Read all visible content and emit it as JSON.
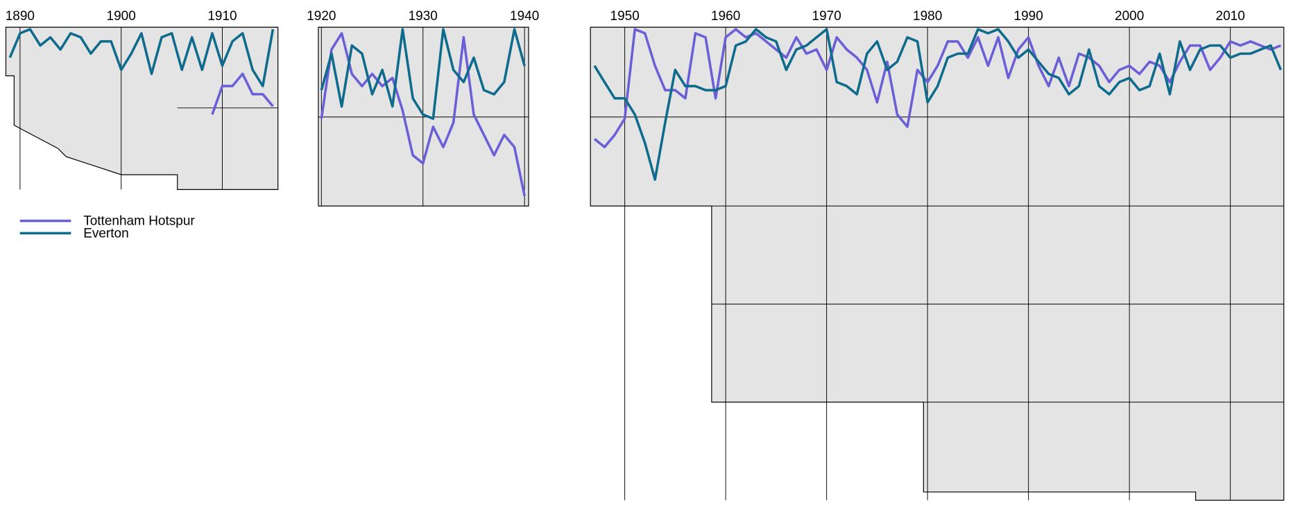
{
  "chart_data": [
    {
      "type": "line",
      "x": [
        1889,
        1890,
        1891,
        1892,
        1893,
        1894,
        1895,
        1896,
        1897,
        1898,
        1899,
        1900,
        1901,
        1902,
        1903,
        1904,
        1905,
        1906,
        1907,
        1908,
        1909,
        1910,
        1911,
        1912,
        1913,
        1914,
        1915
      ],
      "xlim": [
        1888.6,
        1915.5
      ],
      "xticks": [
        1890,
        1900,
        1910
      ],
      "ylim": [
        0.5,
        40.5
      ],
      "grid": true,
      "series": [
        {
          "name": "Tottenham Hotspur",
          "color": "#6b5fd6",
          "values": [
            null,
            null,
            null,
            null,
            null,
            null,
            null,
            null,
            null,
            null,
            null,
            null,
            null,
            null,
            null,
            null,
            null,
            null,
            null,
            null,
            22,
            15,
            15,
            12,
            17,
            17,
            20
          ]
        },
        {
          "name": "Everton",
          "color": "#0f6b8c",
          "values": [
            8,
            2,
            1,
            5,
            3,
            6,
            2,
            3,
            7,
            4,
            4,
            11,
            7,
            2,
            12,
            3,
            2,
            11,
            3,
            11,
            2,
            10,
            4,
            2,
            11,
            15,
            1
          ]
        }
      ]
    },
    {
      "type": "line",
      "x": [
        1920,
        1921,
        1922,
        1923,
        1924,
        1925,
        1926,
        1927,
        1928,
        1929,
        1930,
        1931,
        1932,
        1933,
        1934,
        1935,
        1936,
        1937,
        1938,
        1939,
        1940
      ],
      "xlim": [
        1919.7,
        1940.4
      ],
      "xticks": [
        1920,
        1930,
        1940
      ],
      "ylim": [
        0.5,
        44.5
      ],
      "grid": true,
      "series": [
        {
          "name": "Tottenham Hotspur",
          "color": "#6b5fd6",
          "values": [
            23,
            6,
            2,
            12,
            15,
            12,
            15,
            13,
            21,
            32,
            34,
            25,
            30,
            24,
            3,
            22,
            27,
            32,
            27,
            30,
            42
          ]
        },
        {
          "name": "Everton",
          "color": "#0f6b8c",
          "values": [
            16,
            7,
            20,
            5,
            7,
            17,
            11,
            20,
            1,
            18,
            22,
            23,
            1,
            11,
            14,
            8,
            16,
            17,
            14,
            1,
            10
          ]
        }
      ]
    },
    {
      "type": "line",
      "x": [
        1947,
        1948,
        1949,
        1950,
        1951,
        1952,
        1953,
        1954,
        1955,
        1956,
        1957,
        1958,
        1959,
        1960,
        1961,
        1962,
        1963,
        1964,
        1965,
        1966,
        1967,
        1968,
        1969,
        1970,
        1971,
        1972,
        1973,
        1974,
        1975,
        1976,
        1977,
        1978,
        1979,
        1980,
        1981,
        1982,
        1983,
        1984,
        1985,
        1986,
        1987,
        1988,
        1989,
        1990,
        1991,
        1992,
        1993,
        1994,
        1995,
        1996,
        1997,
        1998,
        1999,
        2000,
        2001,
        2002,
        2003,
        2004,
        2005,
        2006,
        2007,
        2008,
        2009,
        2010,
        2011,
        2012,
        2013,
        2014,
        2015
      ],
      "xlim": [
        1946.6,
        2015.3
      ],
      "xticks": [
        1950,
        1960,
        1970,
        1980,
        1990,
        2000,
        2010
      ],
      "ylim": [
        0.5,
        116.9
      ],
      "grid": true,
      "series": [
        {
          "name": "Tottenham Hotspur",
          "color": "#6b5fd6",
          "values": [
            28,
            30,
            27,
            23,
            1,
            2,
            10,
            16,
            16,
            18,
            2,
            3,
            18,
            3,
            1,
            3,
            2,
            4,
            6,
            8,
            3,
            7,
            6,
            11,
            3,
            6,
            8,
            11,
            19,
            9,
            22,
            25,
            11,
            14,
            10,
            4,
            4,
            8,
            3,
            10,
            3,
            13,
            6,
            3,
            10,
            15,
            8,
            15,
            7,
            8,
            10,
            14,
            11,
            10,
            12,
            9,
            10,
            14,
            9,
            5,
            5,
            11,
            8,
            4,
            5,
            4,
            5,
            6,
            5
          ]
        },
        {
          "name": "Everton",
          "color": "#0f6b8c",
          "values": [
            10,
            14,
            18,
            18,
            22,
            29,
            38,
            24,
            11,
            15,
            15,
            16,
            16,
            15,
            5,
            4,
            1,
            3,
            4,
            11,
            6,
            5,
            3,
            1,
            14,
            15,
            17,
            7,
            4,
            11,
            9,
            3,
            4,
            19,
            15,
            8,
            7,
            7,
            1,
            2,
            1,
            4,
            8,
            6,
            9,
            12,
            13,
            17,
            15,
            6,
            15,
            17,
            14,
            13,
            16,
            15,
            7,
            17,
            4,
            11,
            6,
            5,
            5,
            8,
            7,
            7,
            6,
            5,
            11
          ]
        }
      ]
    }
  ]
}
